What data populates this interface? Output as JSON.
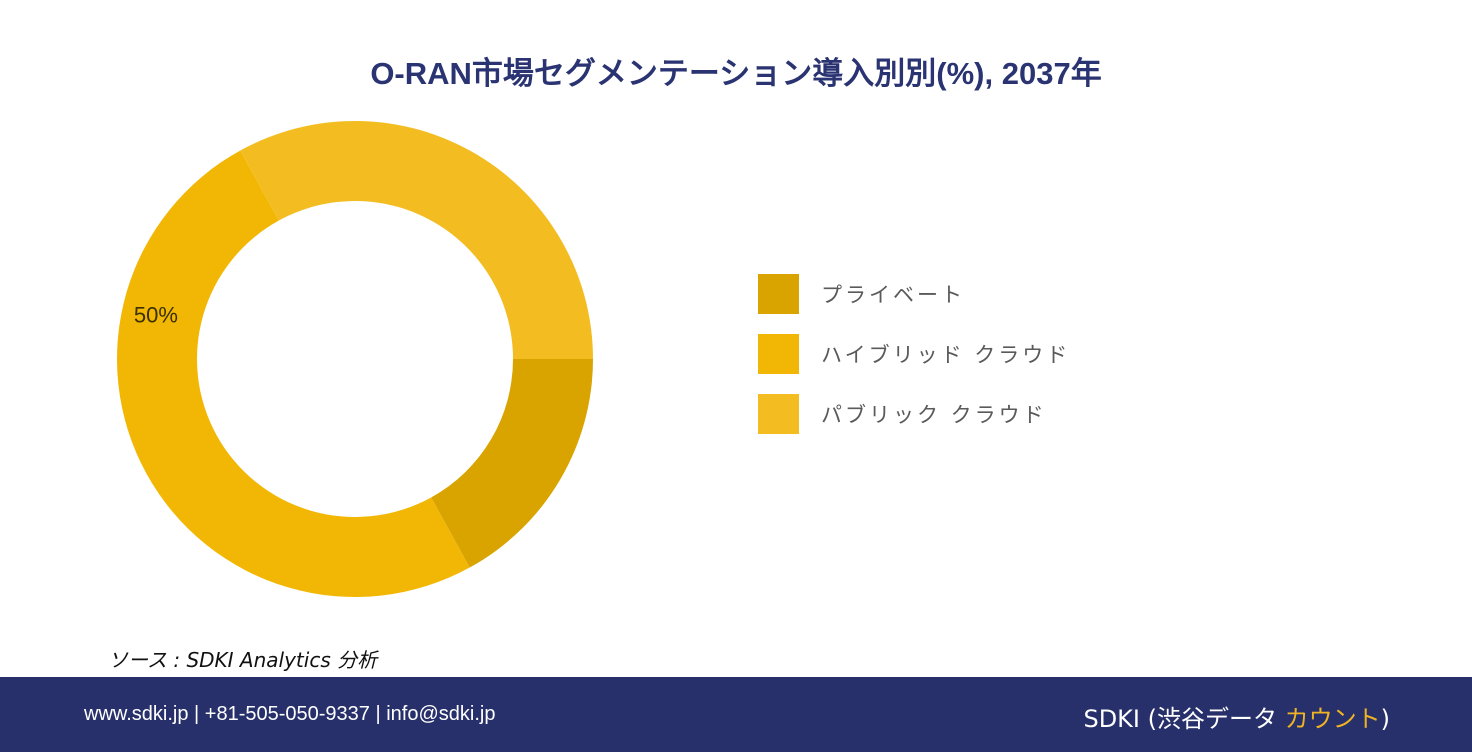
{
  "title": "O-RAN市場セグメンテーション導入別別(%), 2037年",
  "chart_data": {
    "type": "pie",
    "categories": [
      "プライベート",
      "ハイブリッド クラウド",
      "パブリック クラウド"
    ],
    "values": [
      17,
      50,
      33
    ],
    "colors": [
      "#d9a300",
      "#f2b705",
      "#f3bd22"
    ],
    "data_labels": [
      {
        "category": "ハイブリッド クラウド",
        "text": "50%"
      }
    ],
    "legend_position": "right",
    "donut": true
  },
  "source": "ソース : SDKI Analytics 分析",
  "footer": {
    "contact": "www.sdki.jp | +81-505-050-9337 | info@sdki.jp",
    "brand_prefix": "SDKI (渋谷データ ",
    "brand_accent": "カウント",
    "brand_suffix": ")",
    "background_color": "#27306a",
    "accent_color": "#f0b323"
  }
}
